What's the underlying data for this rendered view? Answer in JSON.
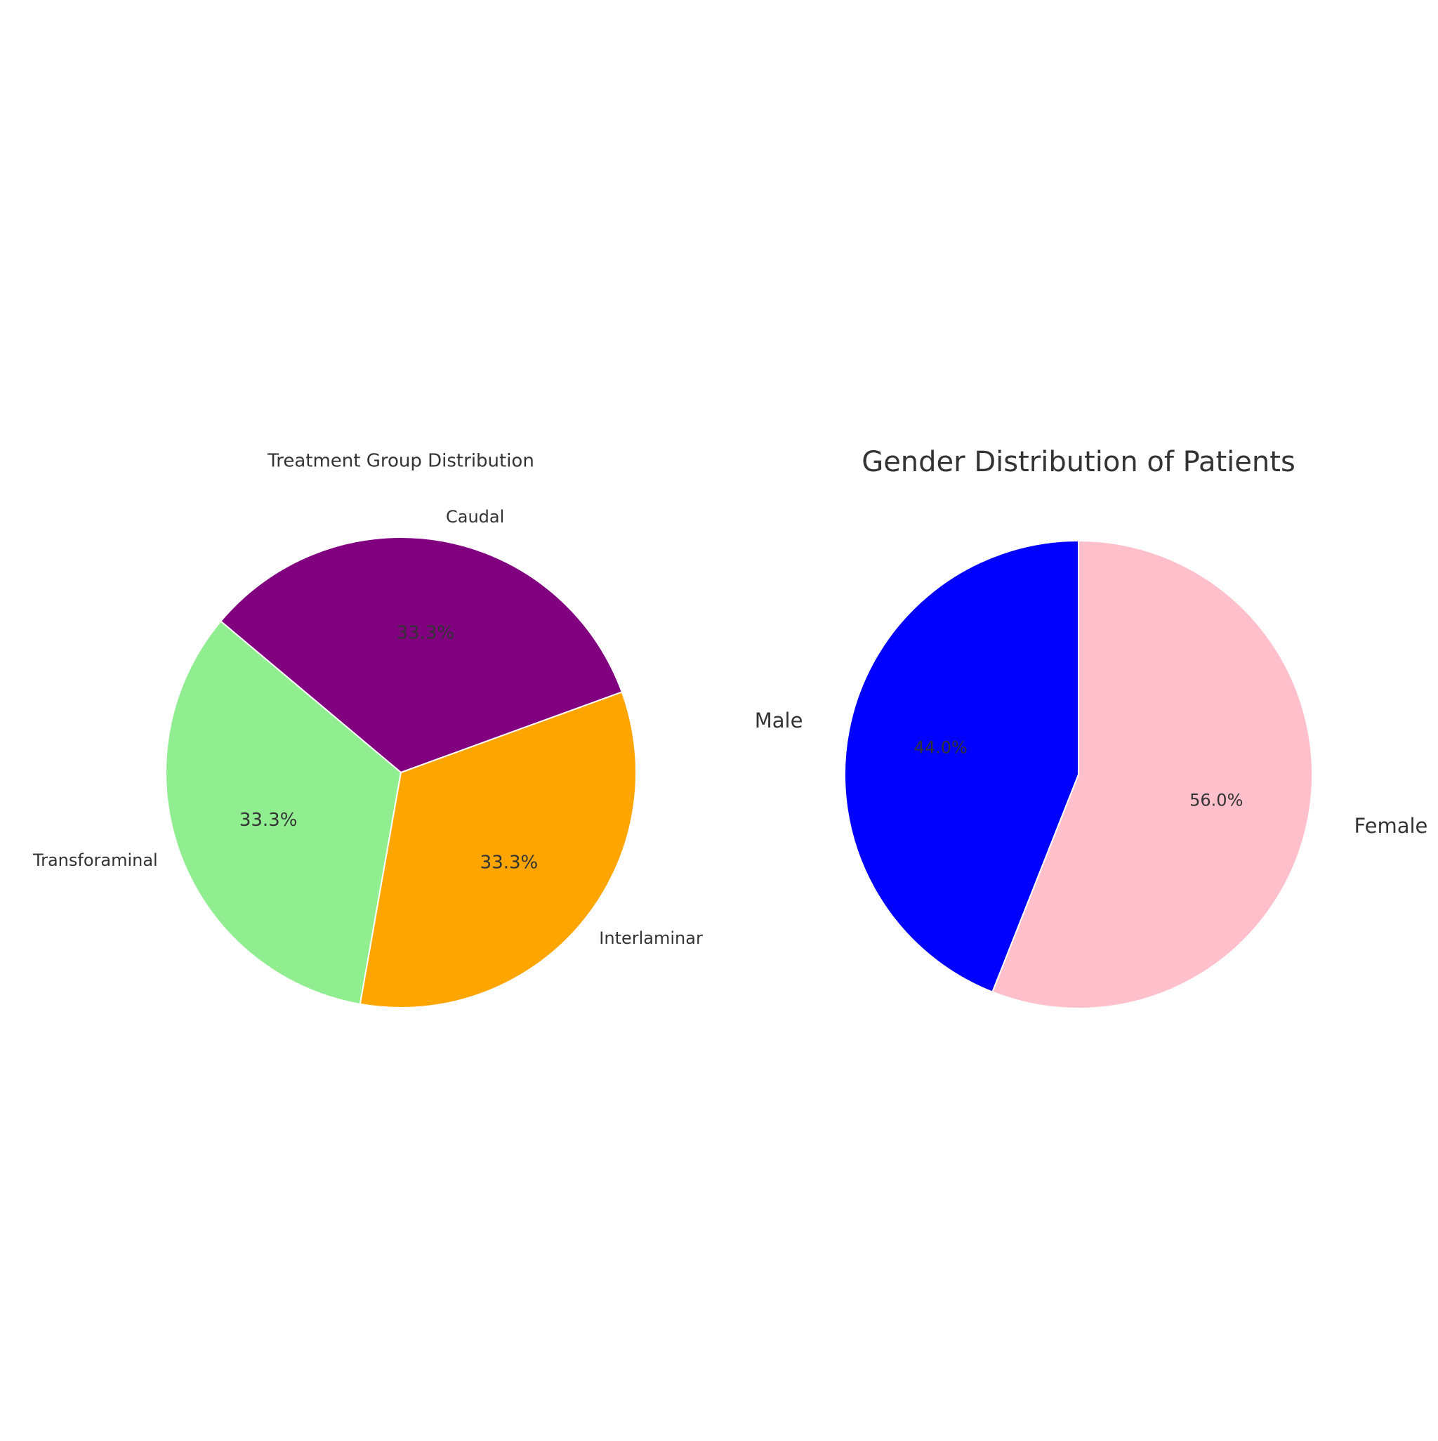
{
  "chart_data": [
    {
      "type": "pie",
      "title": "Treatment Group Distribution",
      "categories": [
        "Caudal",
        "Transforaminal",
        "Interlaminar"
      ],
      "values": [
        33.3,
        33.3,
        33.3
      ],
      "value_labels": [
        "33.3%",
        "33.3%",
        "33.3%"
      ],
      "colors": [
        "#800080",
        "#90ee90",
        "#ffa500"
      ],
      "startangle": 20
    },
    {
      "type": "pie",
      "title": "Gender Distribution of Patients",
      "categories": [
        "Male",
        "Female"
      ],
      "values": [
        44.0,
        56.0
      ],
      "value_labels": [
        "44.0%",
        "56.0%"
      ],
      "colors": [
        "#0000ff",
        "#ffc0cb"
      ],
      "startangle": 90
    }
  ]
}
